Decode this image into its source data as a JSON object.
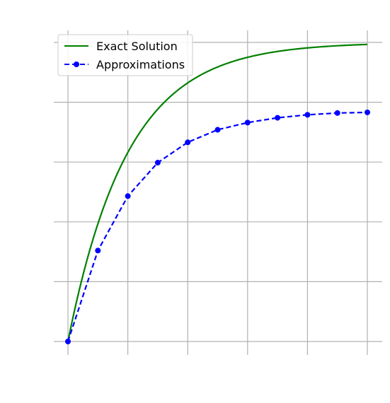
{
  "chart_data": {
    "type": "line",
    "title": "",
    "xlabel": "",
    "ylabel": "",
    "xlim": [
      0,
      5
    ],
    "ylim": [
      0,
      5
    ],
    "xticks": [
      0,
      1,
      2,
      3,
      4,
      5
    ],
    "yticks": [
      0,
      1,
      2,
      3,
      4,
      5
    ],
    "tick_labels_visible": false,
    "grid": true,
    "legend_position": "top-left",
    "series": [
      {
        "name": "Exact Solution",
        "kind": "function",
        "function": "5*(1-exp(-x))",
        "color": "#008000",
        "linestyle": "solid",
        "x_range": [
          0,
          5
        ]
      },
      {
        "name": "Approximations",
        "kind": "points",
        "color": "#0000ff",
        "linestyle": "dashed",
        "marker": "circle",
        "x": [
          0,
          0.5,
          1.0,
          1.5,
          2.0,
          2.5,
          3.0,
          3.5,
          4.0,
          4.5,
          5.0
        ],
        "y": [
          0.0,
          1.52,
          2.43,
          2.99,
          3.33,
          3.54,
          3.66,
          3.74,
          3.79,
          3.82,
          3.83
        ]
      }
    ]
  }
}
